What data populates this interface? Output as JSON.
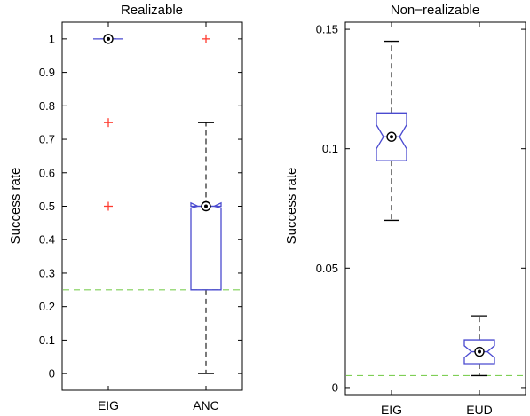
{
  "chart_data": [
    {
      "type": "box",
      "title": "Realizable",
      "ylabel": "Success rate",
      "xlabel": "",
      "ylim": [
        -0.05,
        1.05
      ],
      "yticks": [
        0,
        0.1,
        0.2,
        0.3,
        0.4,
        0.5,
        0.6,
        0.7,
        0.8,
        0.9,
        1
      ],
      "ytick_labels": [
        "0",
        "0.1",
        "0.2",
        "0.3",
        "0.4",
        "0.5",
        "0.6",
        "0.7",
        "0.8",
        "0.9",
        "1"
      ],
      "grid": false,
      "notched": true,
      "categories": [
        "EIG",
        "ANC"
      ],
      "boxes": [
        {
          "category": "EIG",
          "whisker_low": 1,
          "q1": 1,
          "median": 1,
          "q3": 1,
          "whisker_high": 1,
          "notch_low": 1,
          "notch_high": 1,
          "outliers": [
            0.75,
            0.5
          ]
        },
        {
          "category": "ANC",
          "whisker_low": 0,
          "q1": 0.25,
          "median": 0.5,
          "q3": 0.5,
          "whisker_high": 0.75,
          "notch_low": 0.495,
          "notch_high": 0.51,
          "outliers": [
            1
          ]
        }
      ],
      "reference_line": {
        "y": 0.25,
        "color": "#7fcf56",
        "style": "dashed"
      },
      "colors": {
        "box": "#4a4ad0",
        "median_marker": "#000000",
        "outlier": "#ff3b2f",
        "whisker": "#333333"
      }
    },
    {
      "type": "box",
      "title": "Non−realizable",
      "ylabel": "Success rate",
      "xlabel": "",
      "ylim": [
        -0.003,
        0.153
      ],
      "yticks": [
        0,
        0.05,
        0.1,
        0.15
      ],
      "ytick_labels": [
        "0",
        "0.05",
        "0.1",
        "0.15"
      ],
      "grid": false,
      "notched": true,
      "categories": [
        "EIG",
        "EUD"
      ],
      "boxes": [
        {
          "category": "EIG",
          "whisker_low": 0.07,
          "q1": 0.095,
          "median": 0.105,
          "q3": 0.115,
          "whisker_high": 0.145,
          "notch_low": 0.1,
          "notch_high": 0.11,
          "outliers": []
        },
        {
          "category": "EUD",
          "whisker_low": 0.005,
          "q1": 0.01,
          "median": 0.015,
          "q3": 0.02,
          "whisker_high": 0.03,
          "notch_low": 0.0125,
          "notch_high": 0.0175,
          "outliers": []
        }
      ],
      "reference_line": {
        "y": 0.005,
        "color": "#7fcf56",
        "style": "dashed"
      },
      "colors": {
        "box": "#4a4ad0",
        "median_marker": "#000000",
        "outlier": "#ff3b2f",
        "whisker": "#333333"
      }
    }
  ]
}
